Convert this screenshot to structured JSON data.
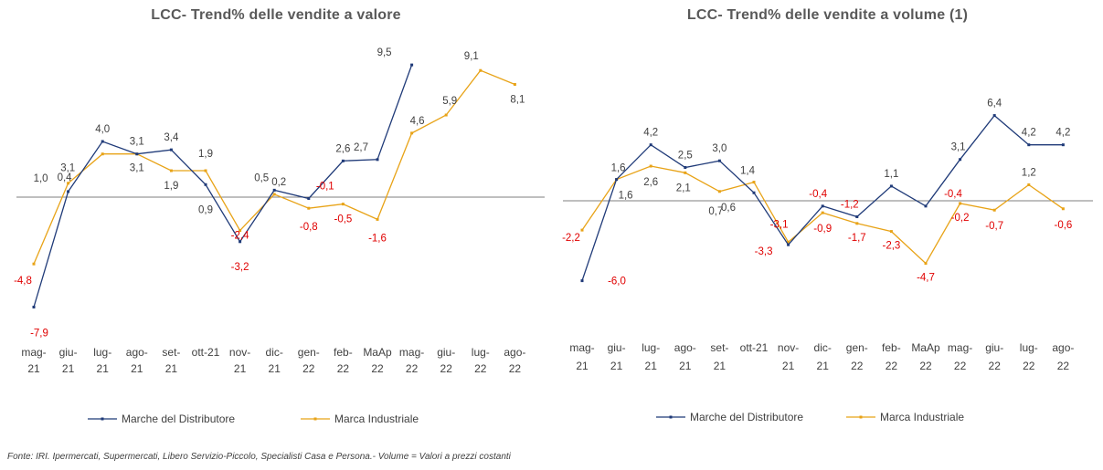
{
  "colors": {
    "private_label": "#1f3a78",
    "industrial": "#e8a317",
    "axis": "#7f7f7f",
    "label_pos": "#404040",
    "label_neg": "#e00000"
  },
  "footnote": "Fonte: IRI. Ipermercati, Supermercati, Libero Servizio-Piccolo, Specialisti Casa e Persona.- Volume = Valori a prezzi costanti",
  "chart_data": [
    {
      "type": "line",
      "title": "LCC- Trend% delle vendite a valore",
      "categories": [
        [
          "mag-",
          "21"
        ],
        [
          "giu-",
          "21"
        ],
        [
          "lug-",
          "21"
        ],
        [
          "ago-",
          "21"
        ],
        [
          "set-",
          "21"
        ],
        [
          "ott-21",
          ""
        ],
        [
          "nov-",
          "21"
        ],
        [
          "dic-",
          "21"
        ],
        [
          "gen-",
          "22"
        ],
        [
          "feb-",
          "22"
        ],
        [
          "MaAp",
          "22"
        ],
        [
          "mag-",
          "22"
        ],
        [
          "giu-",
          "22"
        ],
        [
          "lug-",
          "22"
        ],
        [
          "ago-",
          "22"
        ]
      ],
      "series": [
        {
          "name": "Marche del Distributore",
          "values": [
            -7.9,
            0.4,
            4.0,
            3.1,
            3.4,
            0.9,
            -3.2,
            0.5,
            -0.1,
            2.6,
            2.7,
            9.5,
            null,
            null,
            null
          ],
          "labels": [
            "-7,9",
            "0,4",
            "4,0",
            "3,1",
            "3,4",
            "0,9",
            "-3,2",
            "0,5",
            "-0,1",
            "2,6",
            "2,7",
            "9,5",
            "",
            "",
            ""
          ]
        },
        {
          "name": "Marca Industriale",
          "values": [
            -4.8,
            1.0,
            3.1,
            3.1,
            1.9,
            1.9,
            -2.4,
            0.2,
            -0.8,
            -0.5,
            -1.6,
            4.6,
            5.9,
            9.1,
            8.1
          ],
          "labels": [
            "-4,8",
            "1,0",
            "3,1",
            "3,1",
            "1,9",
            "1,9",
            "-2,4",
            "0,2",
            "-0,8",
            "-0,5",
            "-1,6",
            "4,6",
            "5,9",
            "9,1",
            "8,1"
          ]
        }
      ],
      "legend": "bottom"
    },
    {
      "type": "line",
      "title": "LCC- Trend% delle vendite a volume (1)",
      "categories": [
        [
          "mag-",
          "21"
        ],
        [
          "giu-",
          "21"
        ],
        [
          "lug-",
          "21"
        ],
        [
          "ago-",
          "21"
        ],
        [
          "set-",
          "21"
        ],
        [
          "ott-21",
          ""
        ],
        [
          "nov-",
          "21"
        ],
        [
          "dic-",
          "21"
        ],
        [
          "gen-",
          "22"
        ],
        [
          "feb-",
          "22"
        ],
        [
          "MaAp",
          "22"
        ],
        [
          "mag-",
          "22"
        ],
        [
          "giu-",
          "22"
        ],
        [
          "lug-",
          "22"
        ],
        [
          "ago-",
          "22"
        ]
      ],
      "series": [
        {
          "name": "Marche del Distributore",
          "values": [
            -6.0,
            1.6,
            4.2,
            2.5,
            3.0,
            0.6,
            -3.3,
            -0.4,
            -1.2,
            1.1,
            -0.4,
            3.1,
            6.4,
            4.2,
            4.2
          ],
          "labels": [
            "-6,0",
            "1,6",
            "4,2",
            "2,5",
            "3,0",
            "0,6",
            "-3,3",
            "-0,4",
            "-1,2",
            "1,1",
            "-0,4",
            "3,1",
            "6,4",
            "4,2",
            "4,2"
          ]
        },
        {
          "name": "Marca Industriale",
          "values": [
            -2.2,
            1.6,
            2.6,
            2.1,
            0.7,
            1.4,
            -3.1,
            -0.9,
            -1.7,
            -2.3,
            -4.7,
            -0.2,
            -0.7,
            1.2,
            -0.6
          ],
          "labels": [
            "-2,2",
            "1,6",
            "2,6",
            "2,1",
            "0,7",
            "1,4",
            "-3,1",
            "-0,9",
            "-1,7",
            "-2,3",
            "-4,7",
            "-0,2",
            "-0,7",
            "1,2",
            "-0,6"
          ]
        }
      ],
      "legend": "bottom"
    }
  ]
}
